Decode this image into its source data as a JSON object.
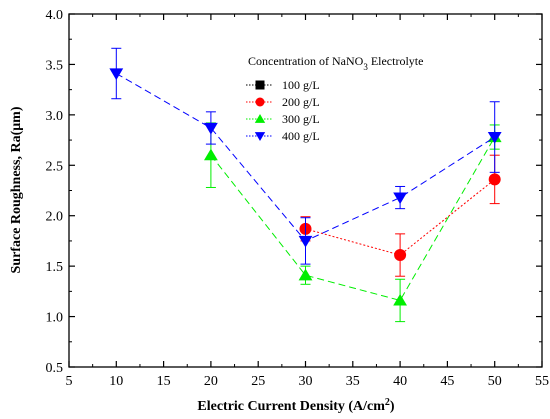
{
  "chart_data": {
    "type": "line",
    "xlabel_main": "Electric Current Density (A/cm",
    "xlabel_sup": "2",
    "xlabel_end": ")",
    "ylabel": "Surface Roughness, Ra(μm)",
    "xlim": [
      5,
      55
    ],
    "ylim": [
      0.5,
      4.0
    ],
    "xticks": [
      "5",
      "10",
      "15",
      "20",
      "25",
      "30",
      "35",
      "40",
      "45",
      "50",
      "55"
    ],
    "yticks": [
      "0.5",
      "1.0",
      "1.5",
      "2.0",
      "2.5",
      "3.0",
      "3.5",
      "4.0"
    ],
    "legend": {
      "title_main": "Concentration of NaNO",
      "title_sub": "3",
      "title_end": " Electrolyte",
      "placement": "top-right"
    },
    "series": [
      {
        "name": "100 g/L",
        "marker": "square",
        "color": "#000000",
        "x": [],
        "y": [],
        "err": []
      },
      {
        "name": "200 g/L",
        "marker": "circle",
        "color": "#ff0000",
        "x": [
          30,
          40,
          50
        ],
        "y": [
          1.87,
          1.61,
          2.36
        ],
        "err": [
          0.12,
          0.21,
          0.24
        ]
      },
      {
        "name": "300 g/L",
        "marker": "triangle-up",
        "color": "#00ee00",
        "x": [
          20,
          30,
          40,
          50
        ],
        "y": [
          2.6,
          1.41,
          1.16,
          2.78
        ],
        "err": [
          0.32,
          0.09,
          0.21,
          0.12
        ]
      },
      {
        "name": "400 g/L",
        "marker": "triangle-down",
        "color": "#0000ff",
        "x": [
          10,
          20,
          30,
          40,
          50
        ],
        "y": [
          3.41,
          2.87,
          1.75,
          2.18,
          2.78
        ],
        "err": [
          0.25,
          0.16,
          0.23,
          0.11,
          0.35
        ]
      }
    ]
  }
}
